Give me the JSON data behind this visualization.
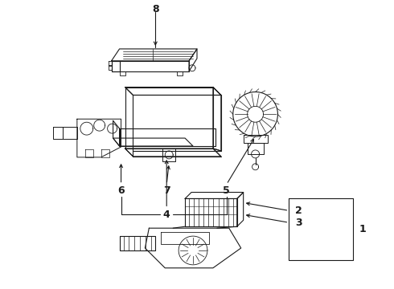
{
  "background_color": "#ffffff",
  "line_color": "#1a1a1a",
  "fig_width": 4.9,
  "fig_height": 3.6,
  "dpi": 100,
  "label_fontsize": 9,
  "label_fontweight": "bold"
}
